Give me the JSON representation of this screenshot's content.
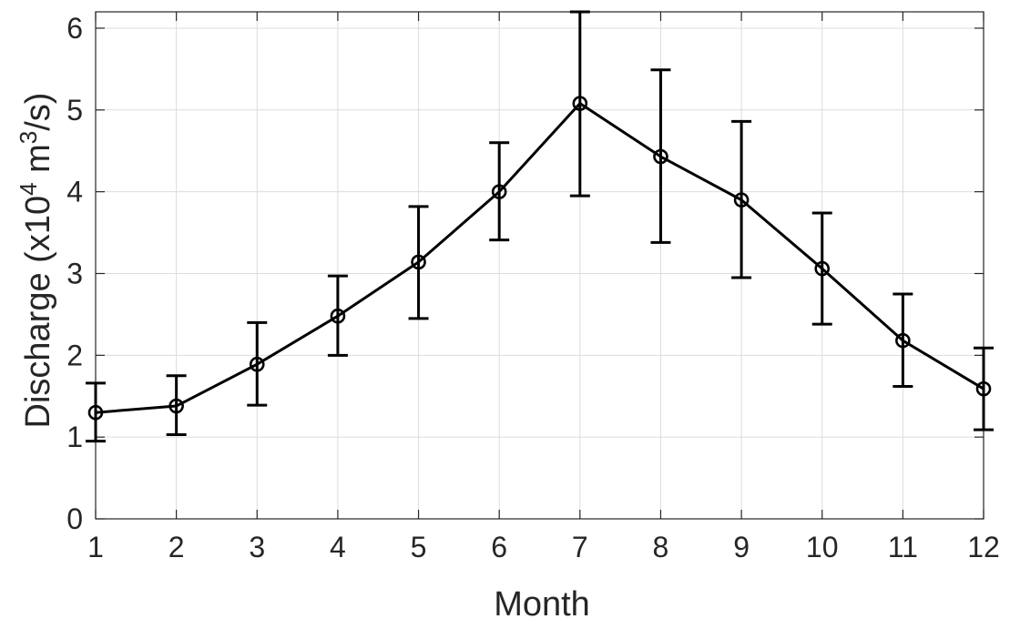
{
  "chart_data": {
    "type": "line",
    "title": "",
    "xlabel": "Month",
    "ylabel": {
      "prefix": "Discharge (x10",
      "sup1": "4",
      "mid": " m",
      "sup2": "3",
      "suffix": "/s)"
    },
    "xlim": [
      1,
      12
    ],
    "ylim": [
      0,
      6.2
    ],
    "grid": true,
    "x": [
      1,
      2,
      3,
      4,
      5,
      6,
      7,
      8,
      9,
      10,
      11,
      12
    ],
    "xticks": [
      "1",
      "2",
      "3",
      "4",
      "5",
      "6",
      "7",
      "8",
      "9",
      "10",
      "11",
      "12"
    ],
    "yticks": [
      0,
      1,
      2,
      3,
      4,
      5,
      6
    ],
    "series": [
      {
        "marker": "circle",
        "color": "#000000",
        "values": [
          1.3,
          1.38,
          1.89,
          2.48,
          3.14,
          4.0,
          5.08,
          4.43,
          3.9,
          3.06,
          2.18,
          1.59
        ],
        "err_low": [
          0.95,
          1.03,
          1.39,
          2.0,
          2.45,
          3.41,
          3.95,
          3.38,
          2.95,
          2.38,
          1.62,
          1.09
        ],
        "err_high": [
          1.66,
          1.75,
          2.4,
          2.97,
          3.82,
          4.6,
          6.2,
          5.49,
          4.86,
          3.74,
          2.75,
          2.09
        ]
      }
    ]
  }
}
